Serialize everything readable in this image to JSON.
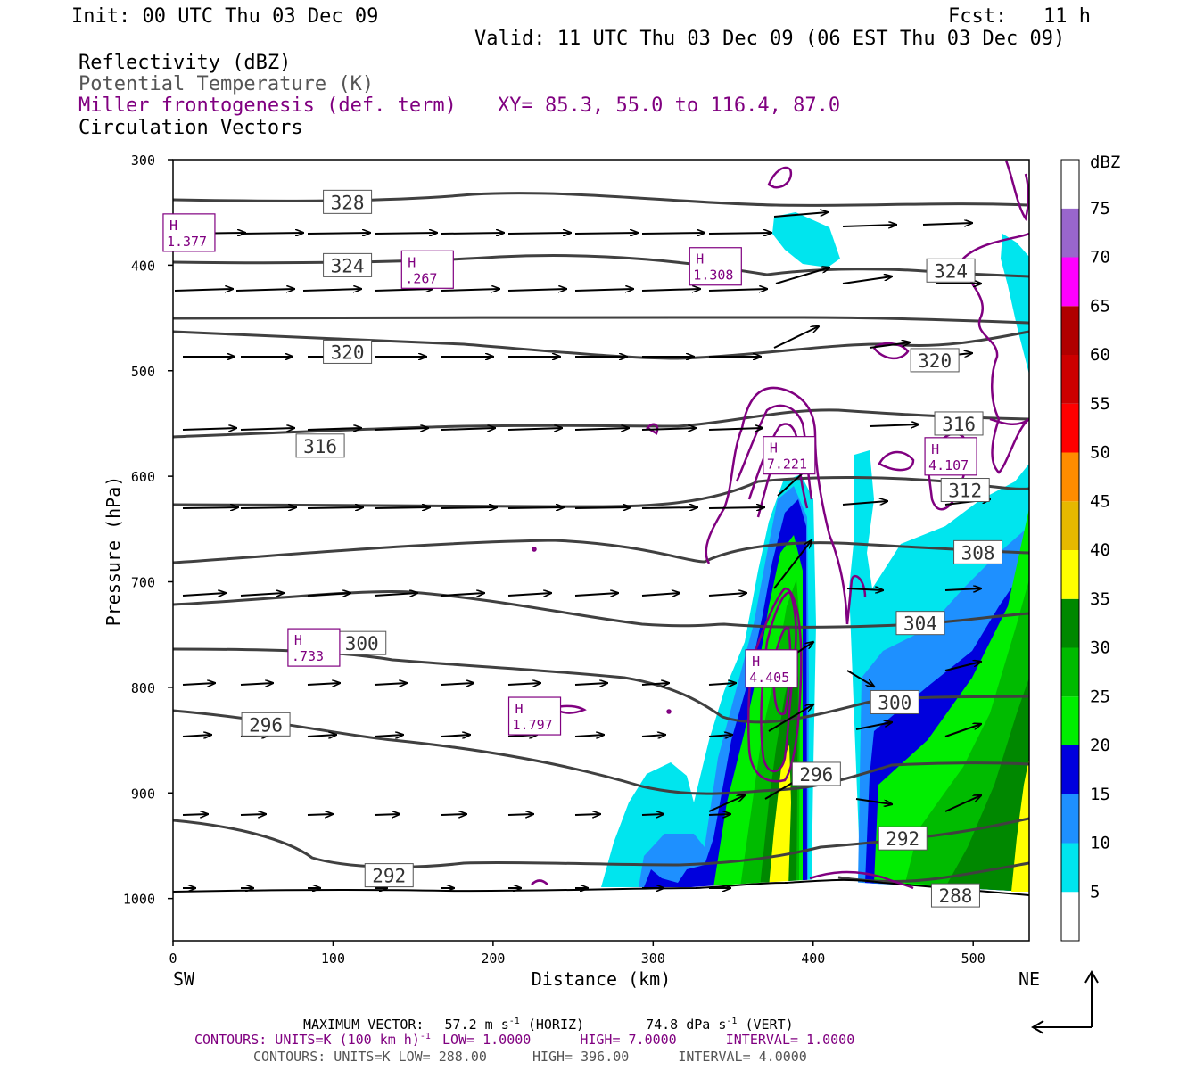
{
  "header": {
    "init": "Init: 00 UTC Thu 03 Dec 09",
    "fcst_label": "Fcst:",
    "fcst_value": "11 h",
    "valid": "Valid: 11 UTC Thu 03 Dec 09 (06 EST Thu 03 Dec 09)"
  },
  "fields": {
    "reflectivity": "Reflectivity (dBZ)",
    "theta": "Potential Temperature (K)",
    "miller": "Miller frontogenesis (def. term)",
    "xy": "XY=  85.3, 55.0 to 116.4, 87.0",
    "vectors": "Circulation Vectors"
  },
  "colors": {
    "theta_contour": "#404040",
    "frontogenesis": "#800080",
    "vector": "#000000"
  },
  "chart_data": {
    "type": "cross-section",
    "xlabel": "Distance (km)",
    "ylabel": "Pressure (hPa)",
    "x_left_label": "SW",
    "x_right_label": "NE",
    "xlim": [
      0,
      535
    ],
    "ylim": [
      1040,
      300
    ],
    "x_ticks": [
      "0",
      "100",
      "200",
      "300",
      "400",
      "500"
    ],
    "x_tick_values": [
      0,
      100,
      200,
      300,
      400,
      500
    ],
    "y_ticks": [
      "300",
      "400",
      "500",
      "600",
      "700",
      "800",
      "900",
      "1000"
    ],
    "y_tick_values": [
      300,
      400,
      500,
      600,
      700,
      800,
      900,
      1000
    ],
    "colorbar": {
      "units": "dBZ",
      "levels": [
        "5",
        "10",
        "15",
        "20",
        "25",
        "30",
        "35",
        "40",
        "45",
        "50",
        "55",
        "60",
        "65",
        "70",
        "75"
      ],
      "colors": [
        "#ffffff",
        "#00e5ee",
        "#1e90ff",
        "#0000dd",
        "#00ee00",
        "#00bb00",
        "#008800",
        "#ffff00",
        "#e6b800",
        "#ff8c00",
        "#ff0000",
        "#cc0000",
        "#b00000",
        "#ff00ff",
        "#9966cc"
      ]
    },
    "theta_labels": [
      {
        "text": "328",
        "x": 109,
        "p": 340
      },
      {
        "text": "324",
        "x": 109,
        "p": 400
      },
      {
        "text": "320",
        "x": 109,
        "p": 482
      },
      {
        "text": "316",
        "x": 92,
        "p": 571
      },
      {
        "text": "300",
        "x": 118,
        "p": 758
      },
      {
        "text": "296",
        "x": 58,
        "p": 835
      },
      {
        "text": "292",
        "x": 135,
        "p": 978
      },
      {
        "text": "324",
        "x": 486,
        "p": 405
      },
      {
        "text": "320",
        "x": 476,
        "p": 490
      },
      {
        "text": "316",
        "x": 491,
        "p": 550
      },
      {
        "text": "312",
        "x": 495,
        "p": 613
      },
      {
        "text": "308",
        "x": 503,
        "p": 672
      },
      {
        "text": "304",
        "x": 467,
        "p": 739
      },
      {
        "text": "300",
        "x": 451,
        "p": 814
      },
      {
        "text": "296",
        "x": 402,
        "p": 882
      },
      {
        "text": "292",
        "x": 456,
        "p": 943
      },
      {
        "text": "288",
        "x": 489,
        "p": 997
      }
    ],
    "frontogenesis_maxima": [
      {
        "mark": "H",
        "value": "1.377",
        "x": 10,
        "p": 370
      },
      {
        "mark": "H",
        "value": ".267",
        "x": 159,
        "p": 405
      },
      {
        "mark": "H",
        "value": "1.308",
        "x": 339,
        "p": 402
      },
      {
        "mark": "H",
        "value": "7.221",
        "x": 385,
        "p": 581
      },
      {
        "mark": "H",
        "value": "4.107",
        "x": 486,
        "p": 582
      },
      {
        "mark": "H",
        "value": ".733",
        "x": 88,
        "p": 763
      },
      {
        "mark": "H",
        "value": "4.405",
        "x": 374,
        "p": 783
      },
      {
        "mark": "H",
        "value": "1.797",
        "x": 226,
        "p": 828
      }
    ]
  },
  "footer": {
    "max_vector_label": "MAXIMUM VECTOR:",
    "max_vector_horiz": "57.2 m s",
    "horiz_unit": "(HORIZ)",
    "max_vector_vert": "74.8 dPa s",
    "vert_unit": "(VERT)",
    "sup": "-1",
    "contours1_a": "CONTOURS:  UNITS=K (100 km h)",
    "contours1_b": "LOW=  1.0000",
    "contours1_c": "HIGH=  7.0000",
    "contours1_d": "INTERVAL=   1.0000",
    "contours2_a": "CONTOURS:  UNITS=K  LOW=  288.00",
    "contours2_b": "HIGH=  396.00",
    "contours2_c": "INTERVAL=   4.0000"
  }
}
